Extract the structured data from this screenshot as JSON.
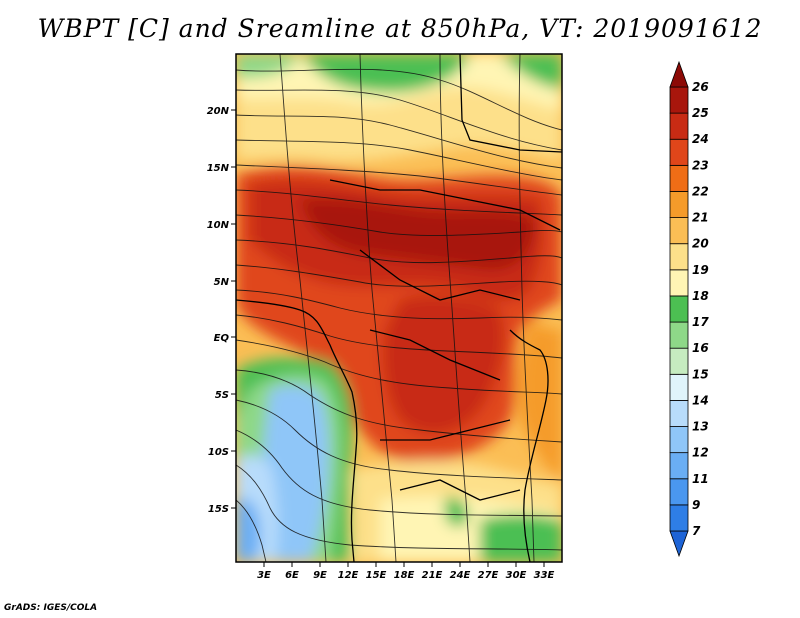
{
  "title": "WBPT [C] and Sreamline at 850hPa, VT: 2019091612",
  "credit": "GrADS: IGES/COLA",
  "map": {
    "lat_labels": [
      "20N",
      "15N",
      "10N",
      "5N",
      "EQ",
      "5S",
      "10S",
      "15S"
    ],
    "lon_labels": [
      "3E",
      "6E",
      "9E",
      "12E",
      "15E",
      "18E",
      "21E",
      "24E",
      "27E",
      "30E",
      "33E"
    ]
  },
  "colorbar": {
    "levels": [
      "7",
      "9",
      "11",
      "12",
      "13",
      "14",
      "15",
      "16",
      "17",
      "18",
      "19",
      "20",
      "21",
      "22",
      "23",
      "24",
      "25",
      "26"
    ],
    "colors": [
      "#1e64d6",
      "#2e7ee6",
      "#4a97ef",
      "#6aaef4",
      "#8fc6f8",
      "#b8dcfb",
      "#e0f4fb",
      "#c6ecc0",
      "#8ed888",
      "#4cbf52",
      "#fff5b4",
      "#fde08a",
      "#fbbe55",
      "#f59b2a",
      "#ef6d16",
      "#e0461a",
      "#c82b14",
      "#a8160c",
      "#8c0a06"
    ]
  }
}
